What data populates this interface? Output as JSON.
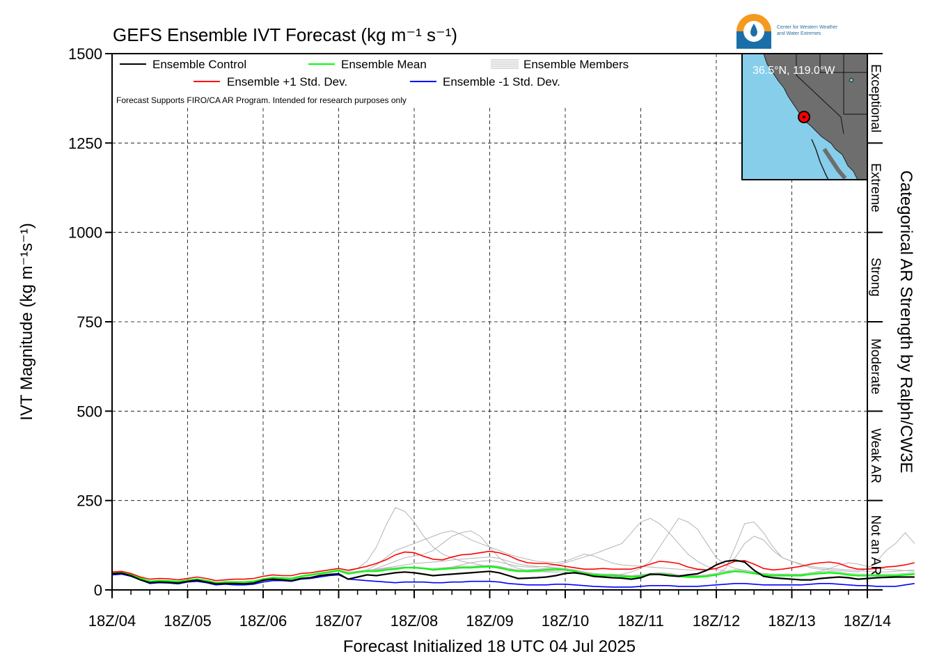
{
  "title": "GEFS Ensemble IVT Forecast (kg m⁻¹ s⁻¹)",
  "logo": {
    "line1": "Center for Western Weather",
    "line2": "and Water Extremes",
    "colors": {
      "orange": "#f39a1f",
      "blue": "#1b6fa8"
    }
  },
  "inset_map": {
    "location_label": "36.5°N, 119.0°W",
    "colors": {
      "ocean": "#87ceeb",
      "land": "#6e6e6e",
      "marker": "#ff0000"
    }
  },
  "legend": {
    "control": "Ensemble Control",
    "mean": "Ensemble Mean",
    "members": "Ensemble Members",
    "plus_std": "Ensemble +1 Std. Dev.",
    "minus_std": "Ensemble -1 Std. Dev."
  },
  "note": "Forecast Supports FIRO/CA AR Program. Intended for research purposes only",
  "categories_title": "Categorical AR Strength by Ralph/CW3E",
  "categories": [
    "Not an AR",
    "Weak AR",
    "Moderate",
    "Strong",
    "Extreme",
    "Exceptional"
  ],
  "chart_data": {
    "type": "line",
    "title": "GEFS Ensemble IVT Forecast (kg m⁻¹ s⁻¹)",
    "xlabel": "Forecast Initialized 18 UTC 04 Jul 2025",
    "ylabel": "IVT Magnitude (kg m⁻¹s⁻¹)",
    "ylim": [
      0,
      1500
    ],
    "yticks": [
      0,
      250,
      500,
      750,
      1000,
      1250,
      1500
    ],
    "category_ticks": [
      0,
      250,
      500,
      750,
      1000,
      1250,
      1500
    ],
    "x_start_day": 4,
    "x_end_day": 14,
    "x_step_hours": 3,
    "x_tick_labels": [
      "18Z/04",
      "18Z/05",
      "18Z/06",
      "18Z/07",
      "18Z/08",
      "18Z/09",
      "18Z/10",
      "18Z/11",
      "18Z/12",
      "18Z/13",
      "18Z/14"
    ],
    "grid": true,
    "colors": {
      "control": "#000000",
      "mean": "#00ff00",
      "members": "#b4b4b4",
      "plus_std": "#ff0000",
      "minus_std": "#0000ff"
    },
    "series": [
      {
        "name": "Ensemble Control",
        "key": "control",
        "values": [
          45,
          47,
          40,
          28,
          20,
          22,
          21,
          19,
          24,
          27,
          22,
          17,
          18,
          18,
          17,
          19,
          27,
          30,
          28,
          26,
          32,
          34,
          40,
          43,
          45,
          30,
          36,
          42,
          40,
          44,
          48,
          50,
          48,
          44,
          40,
          42,
          44,
          46,
          48,
          50,
          52,
          48,
          40,
          32,
          33,
          34,
          36,
          40,
          46,
          48,
          44,
          38,
          36,
          34,
          33,
          30,
          34,
          44,
          43,
          40,
          38,
          42,
          45,
          55,
          70,
          80,
          83,
          78,
          55,
          38,
          34,
          32,
          30,
          28,
          28,
          32,
          34,
          36,
          34,
          30,
          32,
          34,
          35,
          36,
          36,
          36
        ]
      },
      {
        "name": "Ensemble Mean",
        "key": "mean",
        "values": [
          46,
          48,
          42,
          32,
          24,
          26,
          25,
          23,
          27,
          30,
          26,
          20,
          22,
          22,
          22,
          24,
          30,
          34,
          33,
          32,
          38,
          42,
          46,
          50,
          55,
          45,
          50,
          52,
          52,
          56,
          58,
          62,
          62,
          60,
          56,
          58,
          60,
          62,
          62,
          64,
          65,
          62,
          56,
          52,
          52,
          54,
          56,
          58,
          56,
          52,
          46,
          42,
          40,
          40,
          38,
          36,
          38,
          42,
          44,
          42,
          38,
          36,
          36,
          38,
          42,
          48,
          52,
          50,
          46,
          42,
          40,
          40,
          40,
          40,
          44,
          46,
          48,
          46,
          42,
          40,
          40,
          40,
          40,
          40,
          42,
          44
        ]
      },
      {
        "name": "Ensemble +1 Std. Dev.",
        "key": "plus_std",
        "values": [
          50,
          52,
          46,
          36,
          30,
          32,
          31,
          28,
          32,
          36,
          32,
          26,
          28,
          30,
          30,
          32,
          38,
          42,
          40,
          40,
          46,
          48,
          52,
          56,
          60,
          55,
          60,
          66,
          74,
          84,
          98,
          106,
          104,
          94,
          86,
          84,
          92,
          98,
          100,
          104,
          108,
          104,
          96,
          84,
          76,
          74,
          74,
          70,
          66,
          62,
          58,
          58,
          60,
          58,
          58,
          58,
          64,
          72,
          80,
          78,
          74,
          64,
          58,
          56,
          60,
          70,
          80,
          82,
          72,
          60,
          56,
          58,
          62,
          66,
          72,
          76,
          78,
          74,
          64,
          58,
          58,
          60,
          64,
          66,
          70,
          76
        ]
      },
      {
        "name": "Ensemble -1 Std. Dev.",
        "key": "minus_std",
        "values": [
          42,
          44,
          38,
          28,
          18,
          20,
          19,
          17,
          22,
          24,
          20,
          14,
          16,
          14,
          14,
          16,
          22,
          26,
          26,
          24,
          30,
          32,
          36,
          40,
          42,
          30,
          28,
          26,
          24,
          22,
          20,
          22,
          22,
          22,
          20,
          20,
          22,
          22,
          24,
          24,
          24,
          22,
          18,
          16,
          14,
          14,
          14,
          16,
          16,
          14,
          12,
          10,
          9,
          8,
          8,
          8,
          10,
          12,
          12,
          12,
          10,
          10,
          10,
          12,
          14,
          16,
          18,
          18,
          16,
          14,
          14,
          14,
          14,
          14,
          16,
          18,
          18,
          16,
          14,
          12,
          12,
          10,
          10,
          10,
          14,
          18
        ]
      }
    ],
    "members": [
      [
        48,
        50,
        44,
        34,
        24,
        26,
        25,
        22,
        26,
        30,
        26,
        20,
        22,
        22,
        22,
        24,
        30,
        34,
        33,
        32,
        38,
        42,
        46,
        50,
        56,
        50,
        60,
        80,
        120,
        180,
        230,
        220,
        190,
        150,
        120,
        100,
        90,
        80,
        75,
        70,
        65,
        60,
        56,
        52,
        50,
        50,
        52,
        54,
        56,
        52,
        46,
        42,
        40,
        40,
        38,
        36,
        38,
        42,
        44,
        42,
        38,
        36,
        36,
        38,
        42,
        48,
        52,
        50,
        46,
        42,
        40,
        40,
        40,
        40,
        44,
        46,
        48,
        46,
        42,
        40,
        40,
        40,
        40,
        40,
        42,
        44
      ],
      [
        45,
        47,
        41,
        30,
        22,
        24,
        23,
        21,
        25,
        28,
        24,
        18,
        20,
        20,
        20,
        22,
        28,
        32,
        31,
        30,
        36,
        40,
        44,
        48,
        52,
        44,
        48,
        52,
        60,
        70,
        80,
        90,
        95,
        100,
        110,
        130,
        150,
        160,
        165,
        150,
        120,
        90,
        70,
        60,
        55,
        52,
        50,
        50,
        50,
        46,
        44,
        42,
        40,
        42,
        44,
        50,
        60,
        80,
        120,
        160,
        200,
        190,
        170,
        130,
        90,
        70,
        60,
        55,
        50,
        46,
        44,
        42,
        42,
        42,
        44,
        46,
        48,
        46,
        42,
        40,
        40,
        40,
        40,
        40,
        42,
        44
      ],
      [
        46,
        48,
        42,
        32,
        24,
        26,
        25,
        23,
        27,
        30,
        26,
        20,
        22,
        22,
        22,
        24,
        30,
        34,
        33,
        32,
        38,
        42,
        46,
        50,
        54,
        46,
        50,
        54,
        56,
        60,
        62,
        64,
        62,
        60,
        58,
        60,
        62,
        64,
        64,
        66,
        68,
        64,
        58,
        54,
        54,
        56,
        58,
        60,
        58,
        54,
        48,
        44,
        42,
        42,
        40,
        38,
        40,
        44,
        46,
        44,
        40,
        38,
        38,
        40,
        44,
        60,
        120,
        185,
        190,
        160,
        120,
        90,
        80,
        70,
        62,
        58,
        56,
        54,
        52,
        50,
        60,
        80,
        110,
        130,
        160,
        130
      ],
      [
        47,
        49,
        43,
        33,
        25,
        27,
        26,
        24,
        28,
        31,
        27,
        21,
        23,
        23,
        23,
        25,
        31,
        35,
        34,
        33,
        39,
        43,
        47,
        51,
        56,
        48,
        52,
        56,
        70,
        90,
        110,
        120,
        130,
        140,
        150,
        160,
        165,
        155,
        140,
        130,
        120,
        110,
        100,
        92,
        86,
        80,
        78,
        76,
        80,
        90,
        100,
        95,
        85,
        75,
        70,
        68,
        66,
        64,
        62,
        60,
        58,
        56,
        55,
        56,
        60,
        70,
        90,
        130,
        150,
        140,
        110,
        90,
        80,
        72,
        66,
        62,
        60,
        58,
        56,
        54,
        52,
        50,
        50,
        52,
        54,
        56
      ],
      [
        44,
        46,
        40,
        30,
        22,
        24,
        23,
        21,
        25,
        28,
        24,
        18,
        20,
        20,
        20,
        22,
        28,
        32,
        31,
        30,
        36,
        40,
        44,
        48,
        52,
        44,
        48,
        52,
        54,
        58,
        60,
        62,
        62,
        60,
        58,
        60,
        64,
        70,
        76,
        80,
        82,
        78,
        72,
        66,
        64,
        64,
        66,
        70,
        76,
        84,
        92,
        100,
        110,
        120,
        130,
        160,
        190,
        200,
        185,
        160,
        130,
        100,
        80,
        66,
        58,
        52,
        50,
        50,
        48,
        46,
        44,
        42,
        42,
        42,
        44,
        46,
        48,
        46,
        42,
        40,
        40,
        40,
        40,
        40,
        42,
        44
      ],
      [
        46,
        48,
        42,
        32,
        24,
        26,
        25,
        23,
        27,
        30,
        26,
        20,
        22,
        22,
        22,
        24,
        30,
        34,
        33,
        32,
        38,
        42,
        46,
        50,
        55,
        47,
        51,
        55,
        58,
        62,
        66,
        70,
        74,
        76,
        78,
        80,
        84,
        86,
        88,
        90,
        92,
        88,
        80,
        72,
        68,
        66,
        64,
        62,
        60,
        56,
        50,
        46,
        44,
        44,
        42,
        40,
        42,
        46,
        48,
        46,
        42,
        40,
        40,
        42,
        46,
        52,
        56,
        54,
        50,
        46,
        44,
        44,
        44,
        44,
        48,
        52,
        60,
        70,
        76,
        72,
        66,
        60,
        58,
        56,
        54,
        52
      ],
      [
        45,
        47,
        41,
        31,
        23,
        25,
        24,
        22,
        26,
        29,
        25,
        19,
        21,
        21,
        21,
        23,
        29,
        33,
        32,
        31,
        37,
        41,
        45,
        49,
        53,
        45,
        49,
        53,
        56,
        60,
        62,
        64,
        64,
        62,
        60,
        62,
        64,
        66,
        66,
        68,
        69,
        66,
        60,
        56,
        56,
        58,
        60,
        62,
        60,
        56,
        50,
        46,
        44,
        44,
        42,
        40,
        42,
        46,
        48,
        46,
        42,
        40,
        40,
        42,
        46,
        52,
        56,
        54,
        50,
        46,
        44,
        44,
        44,
        44,
        48,
        50,
        52,
        50,
        46,
        44,
        44,
        44,
        44,
        44,
        46,
        48
      ]
    ]
  }
}
